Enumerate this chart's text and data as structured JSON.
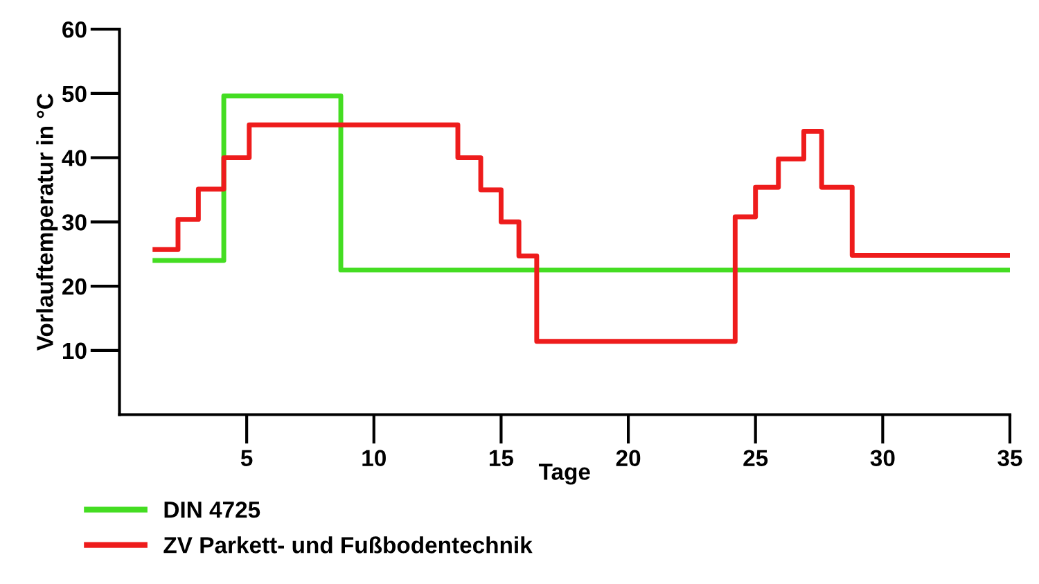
{
  "chart_data": {
    "type": "step",
    "xlabel": "Tage",
    "ylabel": "Vorlauftemperatur in °C",
    "xlim": [
      0,
      35
    ],
    "xticks": [
      5,
      10,
      15,
      20,
      25,
      30,
      35
    ],
    "ylim": [
      0,
      60
    ],
    "yticks": [
      10,
      20,
      30,
      40,
      50,
      60
    ],
    "grid": false,
    "legend": "bottom left",
    "line_style": "solid",
    "marker": "none",
    "series": [
      {
        "name": "DIN 4725",
        "color": "#44dd22",
        "x": [
          1.3,
          4.1,
          8.7,
          35
        ],
        "values": [
          24,
          49.6,
          22.5,
          22.5
        ]
      },
      {
        "name": "ZV Parkett- und Fußbodentechnik",
        "color": "#ee1c1c",
        "x": [
          1.3,
          2.3,
          3.1,
          4.1,
          5.1,
          13.3,
          14.2,
          15.0,
          15.7,
          16.4,
          24.2,
          25.0,
          25.9,
          26.9,
          27.6,
          28.8,
          35
        ],
        "values": [
          25.7,
          30.4,
          35.1,
          40,
          45.1,
          40,
          35,
          30,
          24.7,
          11.4,
          30.8,
          35.4,
          39.8,
          44.1,
          35.4,
          24.8,
          24.8
        ]
      }
    ]
  }
}
